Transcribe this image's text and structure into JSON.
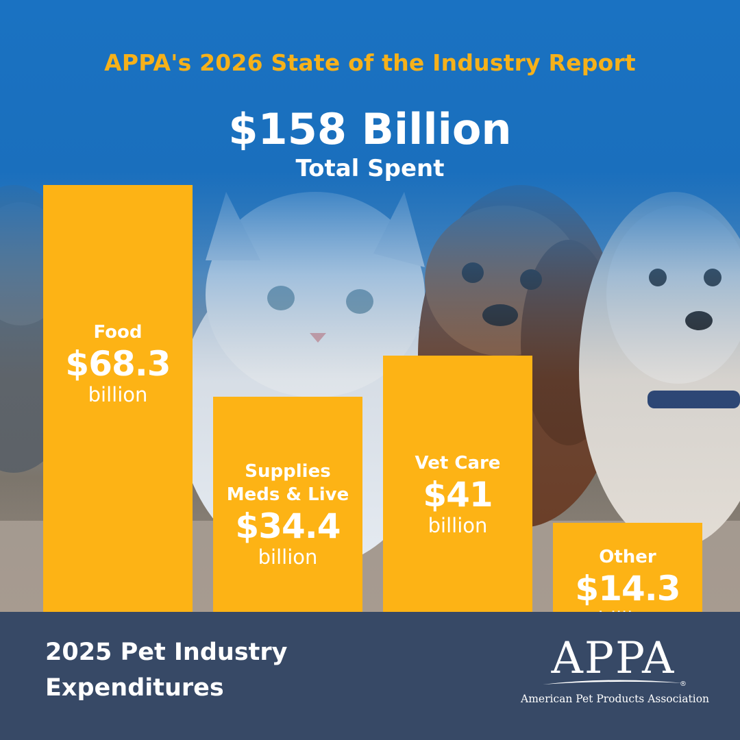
{
  "header": {
    "title": "APPA's 2026 State of the Industry Report",
    "total_value": "$158 Billion",
    "total_label": "Total Spent"
  },
  "colors": {
    "bar": "#fdb315",
    "title_accent": "#f6b11a",
    "background_blue": "#1a6fbd",
    "footer": "#374966"
  },
  "chart_data": {
    "type": "bar",
    "title": "2025 Pet Industry Expenditures",
    "categories": [
      "Food",
      "Supplies Meds & Live",
      "Vet Care",
      "Other"
    ],
    "values": [
      68.3,
      34.4,
      41,
      14.3
    ],
    "unit": "billion",
    "value_labels": [
      "$68.3",
      "$34.4",
      "$41",
      "$14.3"
    ],
    "category_lines": [
      [
        "Food"
      ],
      [
        "Supplies",
        "Meds & Live"
      ],
      [
        "Vet Care"
      ],
      [
        "Other"
      ]
    ],
    "ylim": [
      0,
      68.3
    ],
    "grid": false,
    "legend": "none"
  },
  "footer": {
    "title_line1": "2025 Pet Industry",
    "title_line2": "Expenditures",
    "logo_word": "APPA",
    "logo_registered": "®",
    "logo_subtitle": "American Pet Products Association"
  }
}
